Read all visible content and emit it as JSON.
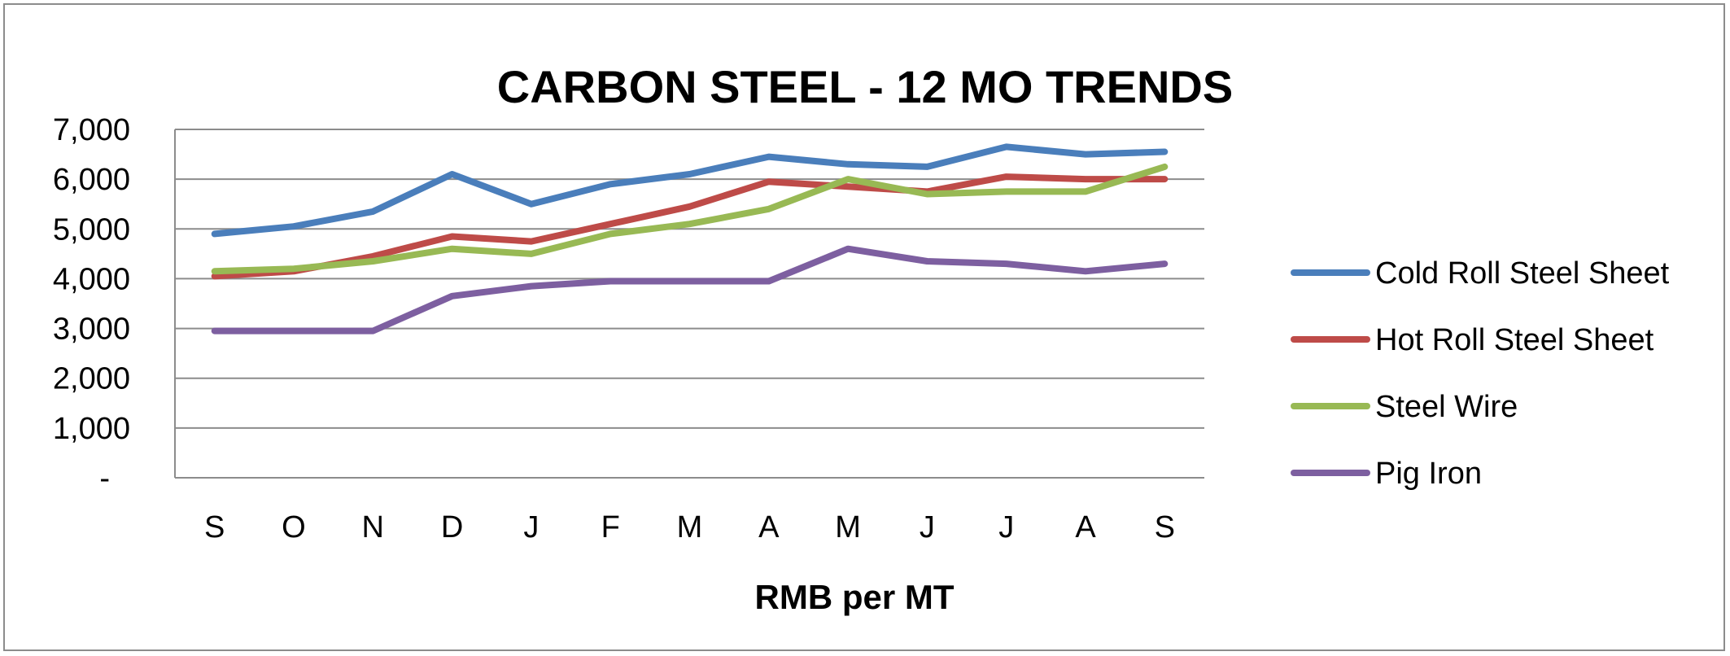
{
  "chart_data": {
    "type": "line",
    "title": "CARBON STEEL - 12 MO TRENDS",
    "xlabel": "RMB per MT",
    "ylabel": "",
    "categories": [
      "S",
      "O",
      "N",
      "D",
      "J",
      "F",
      "M",
      "A",
      "M",
      "J",
      "J",
      "A",
      "S"
    ],
    "ylim": [
      0,
      7000
    ],
    "yticks": [
      0,
      1000,
      2000,
      3000,
      4000,
      5000,
      6000,
      7000
    ],
    "ytick_labels": [
      "-",
      "1,000",
      "2,000",
      "3,000",
      "4,000",
      "5,000",
      "6,000",
      "7,000"
    ],
    "grid": true,
    "legend_position": "right",
    "series": [
      {
        "name": "Cold Roll Steel Sheet",
        "color": "#4a7ebb",
        "values": [
          4900,
          5050,
          5350,
          6100,
          5500,
          5900,
          6100,
          6450,
          6300,
          6250,
          6650,
          6500,
          6550
        ]
      },
      {
        "name": "Hot Roll Steel Sheet",
        "color": "#be4b48",
        "values": [
          4050,
          4150,
          4450,
          4850,
          4750,
          5100,
          5450,
          5950,
          5850,
          5750,
          6050,
          6000,
          6000
        ]
      },
      {
        "name": "Steel Wire",
        "color": "#98b954",
        "values": [
          4150,
          4200,
          4350,
          4600,
          4500,
          4900,
          5100,
          5400,
          6000,
          5700,
          5750,
          5750,
          6250
        ]
      },
      {
        "name": "Pig Iron",
        "color": "#7d5fa0",
        "values": [
          2950,
          2950,
          2950,
          3650,
          3850,
          3950,
          3950,
          3950,
          4600,
          4350,
          4300,
          4150,
          4300
        ]
      }
    ]
  }
}
